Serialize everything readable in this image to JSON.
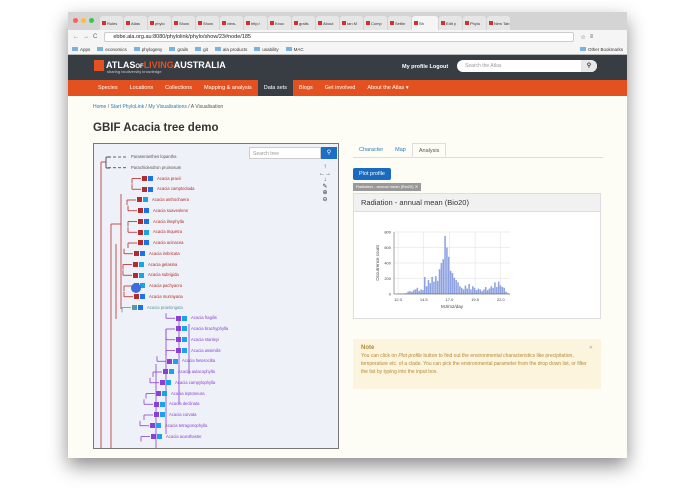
{
  "browser": {
    "tabs": [
      "Rules",
      "Atlas",
      "phylo",
      "Show",
      "Show",
      "view-",
      "http:/",
      "Knoc",
      "grails",
      "About",
      "Ian M",
      "Comp",
      "Settin",
      "Sh",
      "Edit y",
      "Phylo",
      "New Tab"
    ],
    "active_tab": 13,
    "url": "ebbe.ala.org.au:8080/phylolink/phylo/show/23#node/185",
    "bookmarks": [
      "Apps",
      "economics",
      "phylogeny",
      "grails",
      "git",
      "ala products",
      "usability",
      "MAC"
    ],
    "other_bookmarks": "Other Bookmarks"
  },
  "header": {
    "logo": "ATLAS OF LIVING AUSTRALIA",
    "logo_parts": [
      "ATLAS",
      "OF",
      "LIVING",
      "AUSTRALIA"
    ],
    "tagline": "sharing biodiversity knowledge",
    "my_profile": "My profile",
    "logout": "Logout",
    "search_placeholder": "Search the Atlas"
  },
  "nav": {
    "items": [
      "Species",
      "Locations",
      "Collections",
      "Mapping & analysis",
      "Data sets",
      "Blogs",
      "Get involved",
      "About the Atlas ▾"
    ],
    "active": 4
  },
  "breadcrumb": [
    "Home",
    "Start PhyloLink",
    "My Visualisations",
    "A Visualisation"
  ],
  "page_title": "GBIF Acacia tree demo",
  "tree": {
    "search_placeholder": "Search tree",
    "colors": {
      "red": "#b52a2a",
      "purple": "#8a3fd6",
      "teal": "#5a9a9a",
      "blue": "#1a73e8",
      "cyan": "#1aa3e8",
      "gray": "#555"
    },
    "leaves": [
      {
        "name": "Paraserianthes lopantha",
        "color": "gray",
        "squares": []
      },
      {
        "name": "Parachidendron pruinosum",
        "color": "gray",
        "squares": []
      },
      {
        "name": "Acacia pravii",
        "color": "red",
        "squares": [
          "red",
          "blue"
        ]
      },
      {
        "name": "Acacia camptoclada",
        "color": "red",
        "squares": [
          "red",
          "blue"
        ]
      },
      {
        "name": "Acacia anthochaera",
        "color": "red",
        "squares": [
          "red",
          "cyan"
        ]
      },
      {
        "name": "Acacia suaveolens",
        "color": "red",
        "squares": [
          "red",
          "blue"
        ]
      },
      {
        "name": "Acacia ilsephylla",
        "color": "red",
        "squares": [
          "red",
          "blue"
        ]
      },
      {
        "name": "Acacia triquetra",
        "color": "red",
        "squares": [
          "red",
          "cyan"
        ]
      },
      {
        "name": "Acacia acinacea",
        "color": "red",
        "squares": [
          "red",
          "blue"
        ]
      },
      {
        "name": "Acacia imbricata",
        "color": "red",
        "squares": [
          "red",
          "blue"
        ]
      },
      {
        "name": "Acacia gelasina",
        "color": "red",
        "squares": [
          "red",
          "cyan"
        ]
      },
      {
        "name": "Acacia subrigida",
        "color": "red",
        "squares": [
          "red",
          "cyan"
        ]
      },
      {
        "name": "Acacia pachyacra",
        "color": "red",
        "squares": [
          "red",
          "cyan"
        ]
      },
      {
        "name": "Acacia murrayana",
        "color": "red",
        "squares": [
          "red",
          "blue"
        ]
      },
      {
        "name": "Acacia praelongata",
        "color": "teal",
        "squares": [
          "teal",
          "blue"
        ]
      },
      {
        "name": "Acacia fragilis",
        "color": "purple",
        "squares": [
          "purple",
          "cyan"
        ]
      },
      {
        "name": "Acacia brachyphylla",
        "color": "purple",
        "squares": [
          "purple",
          "cyan"
        ]
      },
      {
        "name": "Acacia stanleyi",
        "color": "purple",
        "squares": [
          "purple",
          "cyan"
        ]
      },
      {
        "name": "Acacia assimilis",
        "color": "purple",
        "squares": [
          "purple",
          "cyan"
        ]
      },
      {
        "name": "Acacia heterocilta",
        "color": "purple",
        "squares": [
          "purple",
          "cyan"
        ]
      },
      {
        "name": "Acacia aulacophylla",
        "color": "purple",
        "squares": [
          "purple",
          "cyan"
        ]
      },
      {
        "name": "Acacia campylophylla",
        "color": "purple",
        "squares": [
          "purple",
          "cyan"
        ]
      },
      {
        "name": "Acacia leptoneura",
        "color": "purple",
        "squares": [
          "purple",
          "cyan"
        ]
      },
      {
        "name": "Acacia declinata",
        "color": "purple",
        "squares": [
          "purple",
          "cyan"
        ]
      },
      {
        "name": "Acacia curvata",
        "color": "purple",
        "squares": [
          "purple",
          "cyan"
        ]
      },
      {
        "name": "Acacia tetragonophylla",
        "color": "purple",
        "squares": [
          "purple",
          "cyan"
        ]
      },
      {
        "name": "Acacia acanthaster",
        "color": "purple",
        "squares": [
          "purple",
          "cyan"
        ]
      }
    ]
  },
  "analysis": {
    "tabs": [
      "Character",
      "Map",
      "Analysis"
    ],
    "active_tab": 2,
    "plot_button": "Plot profile",
    "selected_layer": "Radiation - annual mean (Bio20)",
    "panel_title": "Radiation - annual mean (Bio20)",
    "note_title": "Note",
    "note_text_1": "You can click on ",
    "note_text_em": "Plot profile",
    "note_text_2": " button to find out the environmental characteristics like precipitation, temperature etc. of a clade. You can pick the environmental parameter from the drop down list, or filter the list by typing into the input box."
  },
  "chart_data": {
    "type": "bar",
    "xlabel": "MJ/m2/day",
    "ylabel": "Occurrence count",
    "xlim": [
      11.6,
      22.9
    ],
    "ylim": [
      0,
      800
    ],
    "xticks": [
      "12.0",
      "14.5",
      "17.0",
      "19.5",
      "22.0"
    ],
    "yticks": [
      "0",
      "200",
      "400",
      "600",
      "800"
    ],
    "grid": true,
    "bar_color": "#8ea2e0",
    "bin_start": 12.0,
    "bin_width": 0.18,
    "values": [
      5,
      5,
      5,
      8,
      10,
      30,
      40,
      30,
      50,
      60,
      80,
      40,
      60,
      50,
      220,
      100,
      180,
      140,
      220,
      160,
      230,
      170,
      320,
      400,
      450,
      750,
      600,
      480,
      300,
      270,
      210,
      180,
      150,
      100,
      80,
      60,
      110,
      70,
      130,
      60,
      100,
      80,
      50,
      70,
      60,
      40,
      60,
      90,
      50,
      70,
      100,
      80,
      150,
      90,
      160,
      110,
      90,
      80,
      30,
      10
    ]
  }
}
